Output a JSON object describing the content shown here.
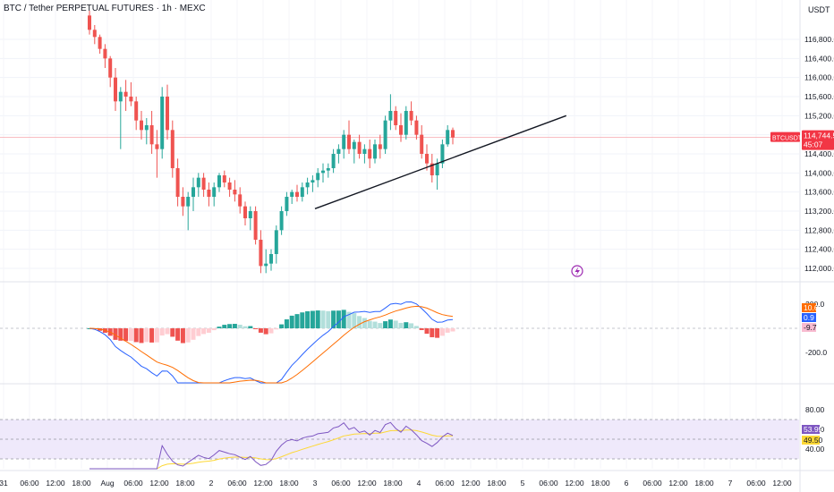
{
  "header": {
    "title": "BTC / Tether PERPETUAL FUTURES · 1h · MEXC",
    "currency": "USDT"
  },
  "colors": {
    "up": "#26a69a",
    "down": "#ef5350",
    "macd_line": "#2962ff",
    "signal_line": "#ff6d00",
    "rsi_line": "#7e57c2",
    "rsi_ma": "#fdd835",
    "rsi_band": "#efe9fb",
    "current_price": "#f23645"
  },
  "price_axis": {
    "labels": [
      "116,800.0",
      "116,400.0",
      "116,000.0",
      "115,600.0",
      "115,200.0",
      "114,800.0",
      "114,400.0",
      "114,000.0",
      "113,600.0",
      "113,200.0",
      "112,800.0",
      "112,400.0",
      "112,000.0"
    ]
  },
  "current_price_tag": {
    "symbol": "BTCUSDT.P",
    "price": "114,744.5",
    "countdown": "45:07"
  },
  "macd_axis": {
    "labels": [
      "200.0",
      "-200.0"
    ],
    "tags": [
      {
        "value": "10.6",
        "color": "#ff6d00"
      },
      {
        "value": "0.9",
        "color": "#2962ff"
      },
      {
        "value": "-9.7",
        "color": "#f8bbd0",
        "text_color": "#131722"
      }
    ]
  },
  "rsi_axis": {
    "labels": [
      "80.00",
      "60.00",
      "40.00"
    ],
    "tags": [
      {
        "value": "53.99",
        "color": "#7e57c2"
      },
      {
        "value": "49.50",
        "color": "#fdd835",
        "text_color": "#131722"
      }
    ]
  },
  "time_axis": {
    "labels": [
      "31",
      "06:00",
      "12:00",
      "18:00",
      "Aug",
      "06:00",
      "12:00",
      "18:00",
      "2",
      "06:00",
      "12:00",
      "18:00",
      "3",
      "06:00",
      "12:00",
      "18:00",
      "4",
      "06:00",
      "12:00",
      "18:00",
      "5",
      "06:00",
      "12:00",
      "18:00",
      "6",
      "06:00",
      "12:00",
      "18:00",
      "7",
      "06:00",
      "12:00"
    ]
  },
  "chart_data": {
    "type": "candlestick",
    "instrument": "BTC / Tether PERPETUAL FUTURES",
    "interval": "1h",
    "exchange": "MEXC",
    "y_range": [
      111900,
      117000
    ],
    "last_price": 114744.5,
    "candles": [
      [
        117300,
        117400,
        116900,
        117000
      ],
      [
        117000,
        117100,
        116700,
        116850
      ],
      [
        116850,
        116900,
        116500,
        116600
      ],
      [
        116600,
        116700,
        116200,
        116400
      ],
      [
        116400,
        116450,
        115800,
        116000
      ],
      [
        116000,
        116200,
        115300,
        115500
      ],
      [
        115500,
        115800,
        114500,
        115700
      ],
      [
        115700,
        115950,
        115300,
        115600
      ],
      [
        115600,
        115900,
        115400,
        115500
      ],
      [
        115500,
        115600,
        114900,
        115100
      ],
      [
        115100,
        115300,
        114700,
        114900
      ],
      [
        114900,
        115150,
        114600,
        115000
      ],
      [
        115000,
        115300,
        114400,
        114600
      ],
      [
        114600,
        114900,
        113900,
        114500
      ],
      [
        114500,
        115800,
        114300,
        115600
      ],
      [
        115600,
        115850,
        114700,
        114900
      ],
      [
        114900,
        115100,
        113900,
        114100
      ],
      [
        114100,
        114300,
        113300,
        113500
      ],
      [
        113500,
        113700,
        113100,
        113300
      ],
      [
        113300,
        113600,
        112800,
        113500
      ],
      [
        113500,
        113900,
        113200,
        113700
      ],
      [
        113700,
        114000,
        113500,
        113900
      ],
      [
        113900,
        114000,
        113500,
        113650
      ],
      [
        113650,
        113800,
        113300,
        113500
      ],
      [
        113500,
        113800,
        113300,
        113700
      ],
      [
        113700,
        114000,
        113600,
        113950
      ],
      [
        113950,
        114050,
        113700,
        113800
      ],
      [
        113800,
        113900,
        113500,
        113650
      ],
      [
        113650,
        113850,
        113400,
        113550
      ],
      [
        113550,
        113700,
        113150,
        113300
      ],
      [
        113300,
        113400,
        112900,
        113050
      ],
      [
        113050,
        113300,
        112800,
        113200
      ],
      [
        113200,
        113300,
        112500,
        112600
      ],
      [
        112600,
        112800,
        111900,
        112050
      ],
      [
        112050,
        112400,
        111900,
        112100
      ],
      [
        112100,
        112400,
        111950,
        112300
      ],
      [
        112300,
        112900,
        112100,
        112800
      ],
      [
        112800,
        113300,
        112700,
        113200
      ],
      [
        113200,
        113600,
        113100,
        113500
      ],
      [
        113500,
        113650,
        113350,
        113600
      ],
      [
        113600,
        113750,
        113400,
        113500
      ],
      [
        113500,
        113800,
        113400,
        113700
      ],
      [
        113700,
        113900,
        113550,
        113800
      ],
      [
        113800,
        113950,
        113600,
        113850
      ],
      [
        113850,
        114100,
        113700,
        114000
      ],
      [
        114000,
        114200,
        113800,
        114050
      ],
      [
        114050,
        114200,
        113900,
        114100
      ],
      [
        114100,
        114500,
        114000,
        114400
      ],
      [
        114400,
        114600,
        114200,
        114500
      ],
      [
        114500,
        114900,
        114300,
        114800
      ],
      [
        114800,
        115100,
        114400,
        114500
      ],
      [
        114500,
        114700,
        114200,
        114650
      ],
      [
        114650,
        114800,
        114300,
        114400
      ],
      [
        114400,
        114600,
        114200,
        114500
      ],
      [
        114500,
        114700,
        114100,
        114300
      ],
      [
        114300,
        114700,
        114200,
        114600
      ],
      [
        114600,
        114800,
        114300,
        114500
      ],
      [
        114500,
        115200,
        114400,
        115100
      ],
      [
        115100,
        115650,
        114900,
        115300
      ],
      [
        115300,
        115400,
        114900,
        115000
      ],
      [
        115000,
        115250,
        114650,
        114800
      ],
      [
        114800,
        115400,
        114700,
        115300
      ],
      [
        115300,
        115500,
        115000,
        115100
      ],
      [
        115100,
        115200,
        114700,
        114800
      ],
      [
        114800,
        115000,
        114300,
        114400
      ],
      [
        114400,
        114600,
        114050,
        114200
      ],
      [
        114200,
        114400,
        113800,
        113950
      ],
      [
        113950,
        114300,
        113650,
        114200
      ],
      [
        114200,
        114700,
        114100,
        114600
      ],
      [
        114600,
        115000,
        114550,
        114900
      ],
      [
        114900,
        114950,
        114600,
        114744.5
      ]
    ],
    "trendline": {
      "from_index": 40,
      "from_price": 113250,
      "to_index": 76,
      "to_price": 115200
    },
    "indicators": {
      "macd": {
        "macd_last": 0.9,
        "signal_last": 10.6,
        "histogram_last": -9.7,
        "axis_ticks": [
          200,
          -200
        ]
      },
      "rsi": {
        "rsi_last": 53.99,
        "rsi_ma_last": 49.5,
        "axis_ticks": [
          80,
          60,
          40
        ],
        "band": [
          30,
          70
        ]
      }
    },
    "time_axis_labels": [
      "31",
      "06:00",
      "12:00",
      "18:00",
      "Aug",
      "06:00",
      "12:00",
      "18:00",
      "2",
      "06:00",
      "12:00",
      "18:00",
      "3",
      "06:00",
      "12:00",
      "18:00",
      "4",
      "06:00",
      "12:00",
      "18:00",
      "5",
      "06:00",
      "12:00",
      "18:00",
      "6",
      "06:00",
      "12:00",
      "18:00",
      "7",
      "06:00",
      "12:00"
    ]
  }
}
